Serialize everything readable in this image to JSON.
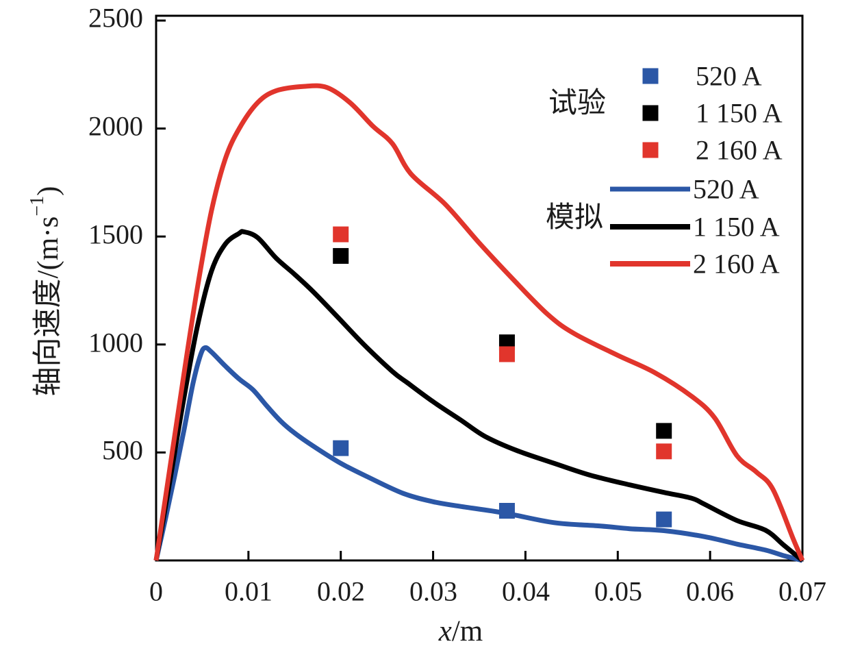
{
  "figure": {
    "background": "#ffffff"
  },
  "chart_data": {
    "type": "line+scatter",
    "xlabel_italic": "x",
    "xlabel_unit": "/m",
    "ylabel_prefix": "轴向速度/(m·s",
    "ylabel_superscript": "−1",
    "ylabel_suffix": ")",
    "xlim": [
      0,
      0.07
    ],
    "ylim": [
      0,
      2500
    ],
    "grid": false,
    "xtick_values": [
      0,
      0.01,
      0.02,
      0.03,
      0.04,
      0.05,
      0.06,
      0.07
    ],
    "xtick_labels": [
      "0",
      "0.01",
      "0.02",
      "0.03",
      "0.04",
      "0.05",
      "0.06",
      "0.07"
    ],
    "ytick_values": [
      500,
      1000,
      1500,
      2000,
      2500
    ],
    "ytick_labels": [
      "500",
      "1000",
      "1500",
      "2000",
      "2500"
    ],
    "axis_color": "#000000",
    "legend": {
      "position": "upper right inside",
      "experiment_group_label": "试验",
      "simulation_group_label": "模拟",
      "experiment": [
        {
          "label": "520 A",
          "color": "#2b57a6"
        },
        {
          "label": "1 150 A",
          "color": "#000000"
        },
        {
          "label": "2 160 A",
          "color": "#e1352c"
        }
      ],
      "simulation": [
        {
          "label": "520 A",
          "color": "#2b57a6"
        },
        {
          "label": "1 150 A",
          "color": "#000000"
        },
        {
          "label": "2 160 A",
          "color": "#e1352c"
        }
      ]
    },
    "scatter_series": [
      {
        "name": "520 A",
        "color": "#2b57a6",
        "marker": "square",
        "points": [
          [
            0.02,
            520
          ],
          [
            0.038,
            230
          ],
          [
            0.055,
            190
          ]
        ]
      },
      {
        "name": "1 150 A",
        "color": "#000000",
        "marker": "square",
        "points": [
          [
            0.02,
            1410
          ],
          [
            0.038,
            1010
          ],
          [
            0.055,
            600
          ]
        ]
      },
      {
        "name": "2 160 A",
        "color": "#e1352c",
        "marker": "square",
        "points": [
          [
            0.02,
            1510
          ],
          [
            0.038,
            955
          ],
          [
            0.055,
            505
          ]
        ]
      }
    ],
    "line_series": [
      {
        "name": "520 A",
        "color": "#2b57a6",
        "stroke_width": 7,
        "points": [
          [
            0,
            0
          ],
          [
            0.001,
            190
          ],
          [
            0.002,
            390
          ],
          [
            0.003,
            600
          ],
          [
            0.004,
            820
          ],
          [
            0.0048,
            950
          ],
          [
            0.0053,
            985
          ],
          [
            0.006,
            965
          ],
          [
            0.0075,
            900
          ],
          [
            0.009,
            840
          ],
          [
            0.0105,
            790
          ],
          [
            0.012,
            715
          ],
          [
            0.0135,
            645
          ],
          [
            0.015,
            590
          ],
          [
            0.017,
            530
          ],
          [
            0.02,
            450
          ],
          [
            0.023,
            385
          ],
          [
            0.0268,
            310
          ],
          [
            0.03,
            272
          ],
          [
            0.033,
            250
          ],
          [
            0.0377,
            220
          ],
          [
            0.0431,
            175
          ],
          [
            0.048,
            160
          ],
          [
            0.0513,
            147
          ],
          [
            0.055,
            138
          ],
          [
            0.0594,
            110
          ],
          [
            0.063,
            75
          ],
          [
            0.066,
            48
          ],
          [
            0.068,
            22
          ],
          [
            0.07,
            0
          ]
        ]
      },
      {
        "name": "1 150 A",
        "color": "#000000",
        "stroke_width": 7,
        "points": [
          [
            0,
            0
          ],
          [
            0.0015,
            370
          ],
          [
            0.003,
            750
          ],
          [
            0.0045,
            1090
          ],
          [
            0.006,
            1340
          ],
          [
            0.0075,
            1465
          ],
          [
            0.009,
            1515
          ],
          [
            0.0095,
            1522
          ],
          [
            0.011,
            1495
          ],
          [
            0.013,
            1400
          ],
          [
            0.015,
            1325
          ],
          [
            0.017,
            1245
          ],
          [
            0.0196,
            1130
          ],
          [
            0.0225,
            1000
          ],
          [
            0.0256,
            875
          ],
          [
            0.0273,
            820
          ],
          [
            0.03,
            735
          ],
          [
            0.033,
            650
          ],
          [
            0.0356,
            575
          ],
          [
            0.039,
            510
          ],
          [
            0.0431,
            450
          ],
          [
            0.047,
            395
          ],
          [
            0.0513,
            350
          ],
          [
            0.055,
            315
          ],
          [
            0.058,
            288
          ],
          [
            0.0594,
            260
          ],
          [
            0.0629,
            185
          ],
          [
            0.066,
            140
          ],
          [
            0.068,
            70
          ],
          [
            0.07,
            0
          ]
        ]
      },
      {
        "name": "2 160 A",
        "color": "#e1352c",
        "stroke_width": 7,
        "points": [
          [
            0,
            0
          ],
          [
            0.0015,
            430
          ],
          [
            0.003,
            860
          ],
          [
            0.0045,
            1270
          ],
          [
            0.006,
            1620
          ],
          [
            0.0075,
            1860
          ],
          [
            0.009,
            2000
          ],
          [
            0.011,
            2120
          ],
          [
            0.013,
            2175
          ],
          [
            0.016,
            2195
          ],
          [
            0.0185,
            2190
          ],
          [
            0.021,
            2120
          ],
          [
            0.0235,
            2010
          ],
          [
            0.0256,
            1930
          ],
          [
            0.0276,
            1790
          ],
          [
            0.0313,
            1650
          ],
          [
            0.035,
            1470
          ],
          [
            0.0387,
            1300
          ],
          [
            0.0424,
            1140
          ],
          [
            0.0453,
            1050
          ],
          [
            0.05,
            950
          ],
          [
            0.054,
            870
          ],
          [
            0.058,
            760
          ],
          [
            0.0605,
            660
          ],
          [
            0.0629,
            485
          ],
          [
            0.065,
            410
          ],
          [
            0.0668,
            330
          ],
          [
            0.069,
            100
          ],
          [
            0.07,
            0
          ]
        ]
      }
    ]
  }
}
